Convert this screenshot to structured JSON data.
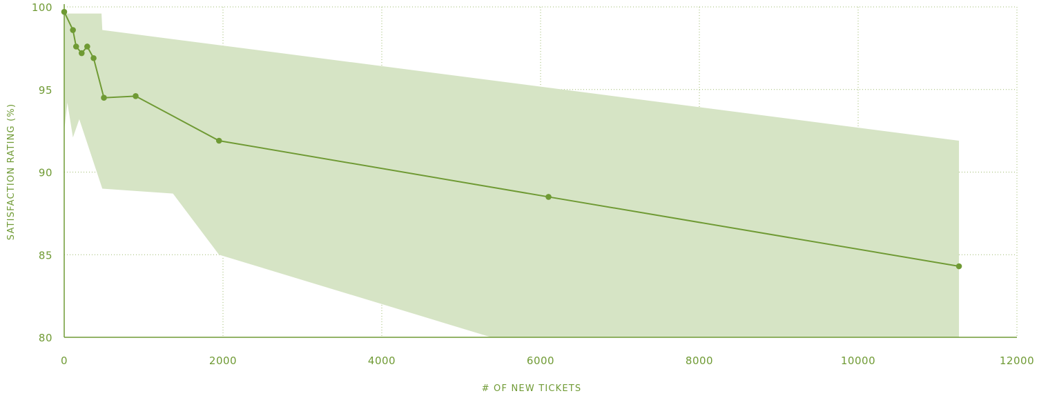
{
  "chart_data": {
    "type": "line",
    "title": "",
    "xlabel": "# OF NEW TICKETS",
    "ylabel": "SATISFACTION RATING (%)",
    "xlim": [
      0,
      12000
    ],
    "ylim": [
      80,
      100
    ],
    "x_ticks": [
      "0",
      "2000",
      "4000",
      "6000",
      "8000",
      "10000",
      "12000"
    ],
    "y_ticks": [
      "80",
      "85",
      "90",
      "95",
      "100"
    ],
    "grid": "dotted",
    "colors": {
      "line": "#6f9a34",
      "band": "#d6e4c5",
      "grid": "#9bb86a",
      "text": "#6f9a34"
    },
    "series": [
      {
        "x": [
          0,
          110,
          150,
          220,
          290,
          370,
          500,
          900,
          1950,
          6100,
          11270
        ],
        "y": [
          99.7,
          98.6,
          97.6,
          97.2,
          97.6,
          96.9,
          94.5,
          94.6,
          91.9,
          88.5,
          84.3
        ]
      }
    ],
    "band": {
      "upper": [
        {
          "x": 0,
          "y": 99.6
        },
        {
          "x": 470,
          "y": 99.6
        },
        {
          "x": 480,
          "y": 98.6
        },
        {
          "x": 11270,
          "y": 91.9
        }
      ],
      "lower": [
        {
          "x": 0,
          "y": 92.5
        },
        {
          "x": 40,
          "y": 94.2
        },
        {
          "x": 110,
          "y": 92.1
        },
        {
          "x": 190,
          "y": 93.2
        },
        {
          "x": 480,
          "y": 89.0
        },
        {
          "x": 1370,
          "y": 88.7
        },
        {
          "x": 1950,
          "y": 85.0
        },
        {
          "x": 5380,
          "y": 80.0
        },
        {
          "x": 11270,
          "y": 80.0
        }
      ]
    }
  }
}
